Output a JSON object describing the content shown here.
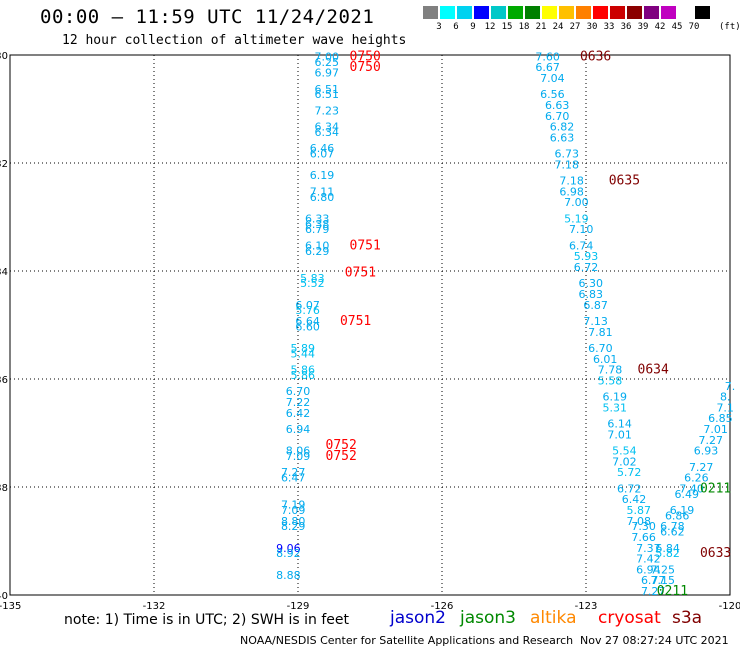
{
  "header": {
    "title": "00:00 – 11:59 UTC 11/24/2021",
    "subtitle": "12 hour collection of altimeter wave heights",
    "unit": "(ft)"
  },
  "colorbar": {
    "colors": [
      "#808080",
      "#00ffff",
      "#00d2f0",
      "#0000ff",
      "#00c8c8",
      "#00aa00",
      "#008000",
      "#ffff00",
      "#ffc000",
      "#ff8000",
      "#ff0000",
      "#cc0000",
      "#8b0000",
      "#800080",
      "#c000c0",
      "#ffffff",
      "#000000"
    ],
    "labels": [
      "3",
      "6",
      "9",
      "12",
      "15",
      "18",
      "21",
      "24",
      "27",
      "30",
      "33",
      "36",
      "39",
      "42",
      "45",
      "70"
    ]
  },
  "footer": {
    "note": "note:  1) Time is in UTC; 2) SWH is in feet",
    "credit": "NOAA/NESDIS Center for Satellite Applications and Research",
    "timestamp": "Nov 27 08:27:24 UTC 2021"
  },
  "satellites": [
    {
      "name": "jason2",
      "color": "#0000cc"
    },
    {
      "name": "jason3",
      "color": "#008800"
    },
    {
      "name": "altika",
      "color": "#ff8800"
    },
    {
      "name": "cryosat",
      "color": "#ff0000"
    },
    {
      "name": "s3a",
      "color": "#800000"
    }
  ],
  "chart_data": {
    "type": "scatter",
    "title": "00:00 – 11:59 UTC 11/24/2021",
    "subtitle": "12 hour collection of altimeter wave heights",
    "xlim": [
      -135,
      -120
    ],
    "ylim": [
      -40,
      -30
    ],
    "x_ticks": [
      "-135",
      "-132",
      "-129",
      "-126",
      "-123",
      "-120"
    ],
    "y_ticks": [
      "-30",
      "-32",
      "-34",
      "-36",
      "-38",
      "-40"
    ],
    "grid": true,
    "series": [
      {
        "name": "cryosat",
        "color": "#ff0000",
        "labels": [
          {
            "x": -127.6,
            "y": -30.1,
            "text": "0750"
          },
          {
            "x": -127.6,
            "y": -30.3,
            "text": "0750"
          },
          {
            "x": -127.6,
            "y": -33.6,
            "text": "0751"
          },
          {
            "x": -127.7,
            "y": -34.1,
            "text": "0751"
          },
          {
            "x": -127.8,
            "y": -35.0,
            "text": "0751"
          },
          {
            "x": -128.1,
            "y": -37.3,
            "text": "0752"
          },
          {
            "x": -128.1,
            "y": -37.5,
            "text": "0752"
          }
        ],
        "points": [
          {
            "x": -128.4,
            "y": -30.1,
            "v": "7.00"
          },
          {
            "x": -128.4,
            "y": -30.2,
            "v": "6.25"
          },
          {
            "x": -128.4,
            "y": -30.4,
            "v": "6.97"
          },
          {
            "x": -128.4,
            "y": -30.7,
            "v": "6.51"
          },
          {
            "x": -128.4,
            "y": -30.8,
            "v": "6.51"
          },
          {
            "x": -128.4,
            "y": -31.1,
            "v": "7.23"
          },
          {
            "x": -128.4,
            "y": -31.4,
            "v": "6.34"
          },
          {
            "x": -128.4,
            "y": -31.5,
            "v": "6.34"
          },
          {
            "x": -128.5,
            "y": -31.8,
            "v": "6.46"
          },
          {
            "x": -128.5,
            "y": -31.9,
            "v": "6.07"
          },
          {
            "x": -128.5,
            "y": -32.3,
            "v": "6.19"
          },
          {
            "x": -128.5,
            "y": -32.6,
            "v": "7.11"
          },
          {
            "x": -128.5,
            "y": -32.7,
            "v": "6.80"
          },
          {
            "x": -128.6,
            "y": -33.1,
            "v": "6.33"
          },
          {
            "x": -128.6,
            "y": -33.2,
            "v": "6.38"
          },
          {
            "x": -128.6,
            "y": -33.3,
            "v": "6.79"
          },
          {
            "x": -128.6,
            "y": -33.6,
            "v": "6.10"
          },
          {
            "x": -128.6,
            "y": -33.7,
            "v": "6.29"
          },
          {
            "x": -128.7,
            "y": -34.2,
            "v": "5.83"
          },
          {
            "x": -128.7,
            "y": -34.3,
            "v": "5.52"
          },
          {
            "x": -128.8,
            "y": -34.7,
            "v": "6.07"
          },
          {
            "x": -128.8,
            "y": -34.8,
            "v": "5.76"
          },
          {
            "x": -128.8,
            "y": -35.0,
            "v": "6.64"
          },
          {
            "x": -128.8,
            "y": -35.1,
            "v": "6.60"
          },
          {
            "x": -128.9,
            "y": -35.5,
            "v": "5.89"
          },
          {
            "x": -128.9,
            "y": -35.6,
            "v": "5.44"
          },
          {
            "x": -128.9,
            "y": -35.9,
            "v": "5.86"
          },
          {
            "x": -128.9,
            "y": -36.0,
            "v": "5.86"
          },
          {
            "x": -129.0,
            "y": -36.3,
            "v": "6.70"
          },
          {
            "x": -129.0,
            "y": -36.5,
            "v": "7.22"
          },
          {
            "x": -129.0,
            "y": -36.7,
            "v": "6.42"
          },
          {
            "x": -129.0,
            "y": -37.0,
            "v": "6.94"
          },
          {
            "x": -129.0,
            "y": -37.4,
            "v": "8.06"
          },
          {
            "x": -129.0,
            "y": -37.5,
            "v": "7.09"
          },
          {
            "x": -129.1,
            "y": -37.8,
            "v": "7.27"
          },
          {
            "x": -129.1,
            "y": -37.9,
            "v": "6.47"
          },
          {
            "x": -129.1,
            "y": -38.4,
            "v": "7.19"
          },
          {
            "x": -129.1,
            "y": -38.5,
            "v": "7.09"
          },
          {
            "x": -129.1,
            "y": -38.7,
            "v": "8.80"
          },
          {
            "x": -129.1,
            "y": -38.8,
            "v": "8.29"
          },
          {
            "x": -129.2,
            "y": -39.2,
            "v": "9.06"
          },
          {
            "x": -129.2,
            "y": -39.3,
            "v": "8.92"
          },
          {
            "x": -129.2,
            "y": -39.7,
            "v": "8.88"
          }
        ]
      },
      {
        "name": "s3a",
        "color": "#800000",
        "labels": [
          {
            "x": -122.8,
            "y": -30.1,
            "text": "0636"
          },
          {
            "x": -122.2,
            "y": -32.4,
            "text": "0635"
          },
          {
            "x": -121.6,
            "y": -35.9,
            "text": "0634"
          },
          {
            "x": -120.3,
            "y": -39.3,
            "text": "0633"
          }
        ],
        "points": [
          {
            "x": -123.8,
            "y": -30.1,
            "v": "7.60"
          },
          {
            "x": -123.8,
            "y": -30.3,
            "v": "6.67"
          },
          {
            "x": -123.7,
            "y": -30.5,
            "v": "7.04"
          },
          {
            "x": -123.7,
            "y": -30.8,
            "v": "6.56"
          },
          {
            "x": -123.6,
            "y": -31.0,
            "v": "6.63"
          },
          {
            "x": -123.6,
            "y": -31.2,
            "v": "6.70"
          },
          {
            "x": -123.5,
            "y": -31.4,
            "v": "6.82"
          },
          {
            "x": -123.5,
            "y": -31.6,
            "v": "6.63"
          },
          {
            "x": -123.4,
            "y": -31.9,
            "v": "6.73"
          },
          {
            "x": -123.4,
            "y": -32.1,
            "v": "7.18"
          },
          {
            "x": -123.3,
            "y": -32.4,
            "v": "7.18"
          },
          {
            "x": -123.3,
            "y": -32.6,
            "v": "6.98"
          },
          {
            "x": -123.2,
            "y": -32.8,
            "v": "7.00"
          },
          {
            "x": -123.2,
            "y": -33.1,
            "v": "5.19"
          },
          {
            "x": -123.1,
            "y": -33.3,
            "v": "7.10"
          },
          {
            "x": -123.1,
            "y": -33.6,
            "v": "6.74"
          },
          {
            "x": -123.0,
            "y": -33.8,
            "v": "5.93"
          },
          {
            "x": -123.0,
            "y": -34.0,
            "v": "6.72"
          },
          {
            "x": -122.9,
            "y": -34.3,
            "v": "6.30"
          },
          {
            "x": -122.9,
            "y": -34.5,
            "v": "6.83"
          },
          {
            "x": -122.8,
            "y": -34.7,
            "v": "6.87"
          },
          {
            "x": -122.8,
            "y": -35.0,
            "v": "7.13"
          },
          {
            "x": -122.7,
            "y": -35.2,
            "v": "7.81"
          },
          {
            "x": -122.7,
            "y": -35.5,
            "v": "6.70"
          },
          {
            "x": -122.6,
            "y": -35.7,
            "v": "6.01"
          },
          {
            "x": -122.5,
            "y": -35.9,
            "v": "7.78"
          },
          {
            "x": -122.5,
            "y": -36.1,
            "v": "5.58"
          },
          {
            "x": -122.4,
            "y": -36.4,
            "v": "6.19"
          },
          {
            "x": -122.4,
            "y": -36.6,
            "v": "5.31"
          },
          {
            "x": -122.3,
            "y": -36.9,
            "v": "6.14"
          },
          {
            "x": -122.3,
            "y": -37.1,
            "v": "7.01"
          },
          {
            "x": -122.2,
            "y": -37.4,
            "v": "5.54"
          },
          {
            "x": -122.2,
            "y": -37.6,
            "v": "7.02"
          },
          {
            "x": -122.1,
            "y": -37.8,
            "v": "5.72"
          },
          {
            "x": -122.1,
            "y": -38.1,
            "v": "6.72"
          },
          {
            "x": -122.0,
            "y": -38.3,
            "v": "6.42"
          },
          {
            "x": -121.9,
            "y": -38.5,
            "v": "5.87"
          },
          {
            "x": -121.9,
            "y": -38.7,
            "v": "7.08"
          },
          {
            "x": -121.8,
            "y": -38.8,
            "v": "7.30"
          },
          {
            "x": -121.8,
            "y": -39.0,
            "v": "7.66"
          },
          {
            "x": -121.7,
            "y": -39.2,
            "v": "7.37"
          },
          {
            "x": -121.7,
            "y": -39.4,
            "v": "7.42"
          },
          {
            "x": -121.7,
            "y": -39.6,
            "v": "6.94"
          },
          {
            "x": -121.6,
            "y": -39.8,
            "v": "6.77"
          },
          {
            "x": -121.6,
            "y": -40.0,
            "v": "7.27"
          }
        ]
      },
      {
        "name": "jason3",
        "color": "#008800",
        "labels": [
          {
            "x": -120.3,
            "y": -38.1,
            "text": "0211"
          },
          {
            "x": -121.2,
            "y": -40.0,
            "text": "0211"
          }
        ],
        "points": [
          {
            "x": -120.0,
            "y": -36.2,
            "v": "7."
          },
          {
            "x": -120.1,
            "y": -36.4,
            "v": "8."
          },
          {
            "x": -120.1,
            "y": -36.6,
            "v": "7.1"
          },
          {
            "x": -120.2,
            "y": -36.8,
            "v": "6.85"
          },
          {
            "x": -120.3,
            "y": -37.0,
            "v": "7.01"
          },
          {
            "x": -120.4,
            "y": -37.2,
            "v": "7.27"
          },
          {
            "x": -120.5,
            "y": -37.4,
            "v": "6.93"
          },
          {
            "x": -120.6,
            "y": -37.7,
            "v": "7.27"
          },
          {
            "x": -120.7,
            "y": -37.9,
            "v": "6.26"
          },
          {
            "x": -120.8,
            "y": -38.1,
            "v": "7.40"
          },
          {
            "x": -120.9,
            "y": -38.2,
            "v": "6.49"
          },
          {
            "x": -121.0,
            "y": -38.5,
            "v": "6.19"
          },
          {
            "x": -121.1,
            "y": -38.6,
            "v": "6.86"
          },
          {
            "x": -121.2,
            "y": -38.8,
            "v": "6.78"
          },
          {
            "x": -121.2,
            "y": -38.9,
            "v": "6.62"
          },
          {
            "x": -121.3,
            "y": -39.2,
            "v": "6.84"
          },
          {
            "x": -121.3,
            "y": -39.3,
            "v": "5.82"
          },
          {
            "x": -121.4,
            "y": -39.6,
            "v": "7.25"
          },
          {
            "x": -121.4,
            "y": -39.8,
            "v": "7.15"
          }
        ]
      }
    ]
  }
}
